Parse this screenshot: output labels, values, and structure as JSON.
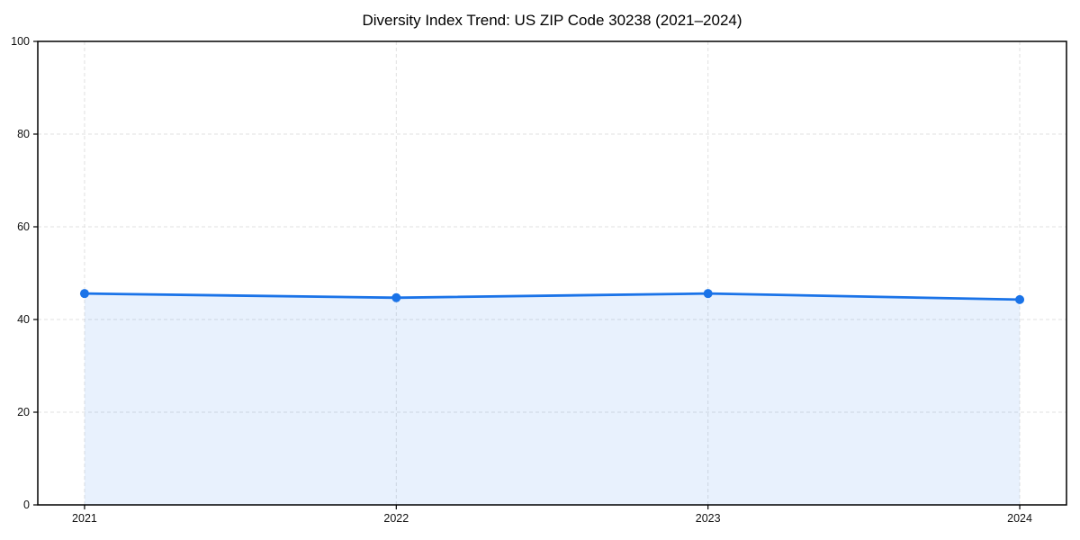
{
  "chart_data": {
    "type": "area",
    "title": "Diversity Index Trend: US ZIP Code 30238 (2021–2024)",
    "x": [
      2021,
      2022,
      2023,
      2024
    ],
    "values": [
      45.6,
      44.7,
      45.6,
      44.3
    ],
    "xtick_labels": [
      "2021",
      "2022",
      "2023",
      "2024"
    ],
    "yticks": [
      0,
      20,
      40,
      60,
      80,
      100
    ],
    "ytick_labels": [
      "0",
      "20",
      "40",
      "60",
      "80",
      "100"
    ],
    "xlim": [
      2020.85,
      2024.15
    ],
    "ylim": [
      0,
      100
    ],
    "xlabel": "",
    "ylabel": "",
    "grid": true,
    "grid_style": "dashed",
    "legend": "none",
    "marker": "circle",
    "colors": {
      "line": "#1a73e8",
      "fill": "#1a73e8",
      "fill_opacity": 0.1,
      "grid": "#e0e0e0",
      "spine": "#000000",
      "tick_label": "#111111",
      "background": "#ffffff"
    }
  }
}
